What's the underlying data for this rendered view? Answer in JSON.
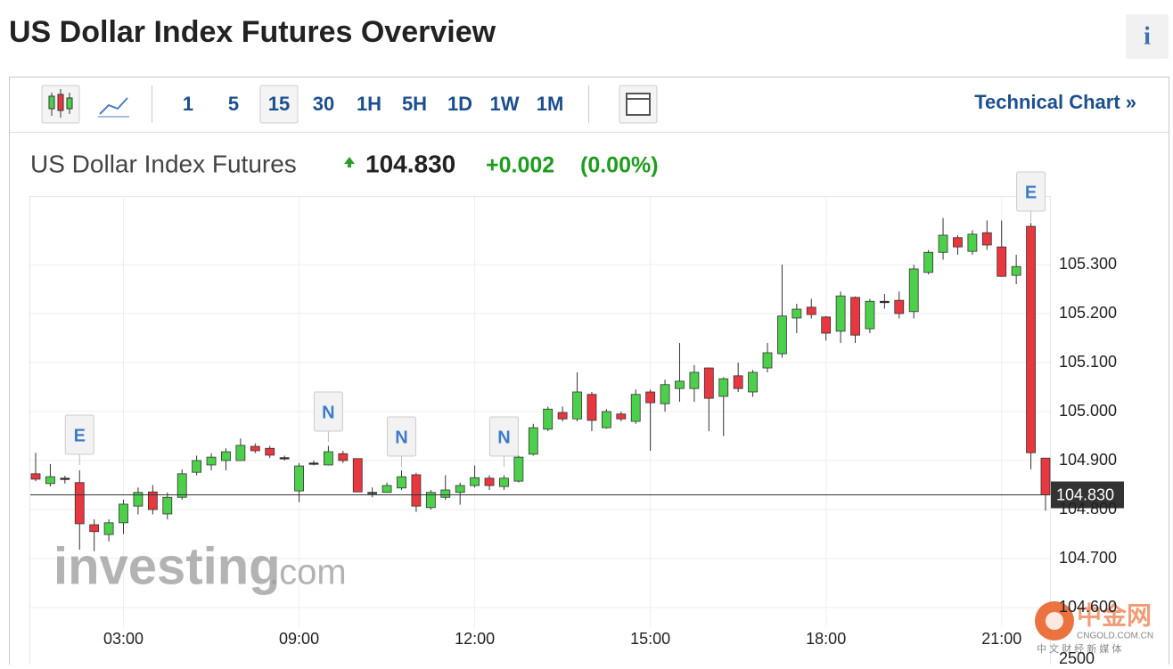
{
  "header": {
    "title": "US Dollar Index Futures Overview",
    "info": "i"
  },
  "toolbar": {
    "intervals": [
      "1",
      "5",
      "15",
      "30",
      "1H",
      "5H",
      "1D",
      "1W",
      "1M"
    ],
    "selected": "15",
    "link": "Technical Chart »"
  },
  "quote": {
    "name": "US Dollar Index Futures",
    "price": "104.830",
    "change": "+0.002",
    "change_pct": "(0.00%)"
  },
  "chart_data": {
    "type": "candlestick",
    "open": [
      104.873,
      104.853,
      104.862,
      104.855,
      104.769,
      104.749,
      104.773,
      104.807,
      104.836,
      104.791,
      104.825,
      104.876,
      104.891,
      104.9,
      104.9,
      104.929,
      104.925,
      104.905,
      104.838,
      104.893,
      104.891,
      104.914,
      104.904,
      104.833,
      104.835,
      104.844,
      104.871,
      104.804,
      104.825,
      104.835,
      104.849,
      104.864,
      104.847,
      104.858,
      104.913,
      104.964,
      104.998,
      104.985,
      105.035,
      104.967,
      104.995,
      104.98,
      105.04,
      105.016,
      105.047,
      105.047,
      105.089,
      105.031,
      105.073,
      105.04,
      105.089,
      105.118,
      105.191,
      105.213,
      105.193,
      105.164,
      105.233,
      105.169,
      105.224,
      105.227,
      105.204,
      105.284,
      105.325,
      105.355,
      105.327,
      105.365,
      105.336,
      105.278,
      105.378,
      104.905
    ],
    "high": [
      104.916,
      104.893,
      104.869,
      104.88,
      104.78,
      104.78,
      104.82,
      104.845,
      104.85,
      104.835,
      104.882,
      104.91,
      104.915,
      104.925,
      104.945,
      104.935,
      104.93,
      104.91,
      104.895,
      104.9,
      104.93,
      104.92,
      104.904,
      104.845,
      104.855,
      104.88,
      104.875,
      104.84,
      104.87,
      104.855,
      104.89,
      104.87,
      104.87,
      104.91,
      104.975,
      105.01,
      105.01,
      105.08,
      105.04,
      105.005,
      105.0,
      105.045,
      105.045,
      105.065,
      105.14,
      105.095,
      105.09,
      105.07,
      105.1,
      105.085,
      105.14,
      105.3,
      105.22,
      105.23,
      105.195,
      105.245,
      105.235,
      105.23,
      105.24,
      105.245,
      105.3,
      105.33,
      105.395,
      105.36,
      105.37,
      105.39,
      105.39,
      105.32,
      105.385,
      104.905
    ],
    "low": [
      104.858,
      104.847,
      104.853,
      104.718,
      104.715,
      104.735,
      104.75,
      104.79,
      104.79,
      104.78,
      104.82,
      104.87,
      104.88,
      104.88,
      104.9,
      104.915,
      104.905,
      104.9,
      104.815,
      104.89,
      104.89,
      104.895,
      104.836,
      104.825,
      104.835,
      104.84,
      104.795,
      104.8,
      104.82,
      104.81,
      104.845,
      104.84,
      104.84,
      104.855,
      104.91,
      104.96,
      104.98,
      104.98,
      104.96,
      104.965,
      104.98,
      104.975,
      104.92,
      105.0,
      105.02,
      105.02,
      104.96,
      104.95,
      105.04,
      105.03,
      105.08,
      105.11,
      105.16,
      105.19,
      105.145,
      105.14,
      105.14,
      105.16,
      105.21,
      105.19,
      105.19,
      105.28,
      105.31,
      105.32,
      105.32,
      105.33,
      105.275,
      105.26,
      104.882,
      104.798
    ],
    "close": [
      104.862,
      104.867,
      104.864,
      104.771,
      104.755,
      104.773,
      104.811,
      104.835,
      104.8,
      104.825,
      104.873,
      104.9,
      104.907,
      104.918,
      104.931,
      104.92,
      104.911,
      104.906,
      104.889,
      104.895,
      104.918,
      104.9,
      104.836,
      104.835,
      104.849,
      104.867,
      104.807,
      104.835,
      104.84,
      104.849,
      104.865,
      104.849,
      104.864,
      104.907,
      104.967,
      105.005,
      104.985,
      105.04,
      104.982,
      105.0,
      104.985,
      105.035,
      105.018,
      105.055,
      105.062,
      105.08,
      105.027,
      105.067,
      105.047,
      105.08,
      105.12,
      105.195,
      105.209,
      105.198,
      105.16,
      105.236,
      105.156,
      105.225,
      105.225,
      105.2,
      105.291,
      105.325,
      105.36,
      105.336,
      105.362,
      105.34,
      105.276,
      105.296,
      104.916,
      104.83
    ],
    "up_color": "#4cd04c",
    "down_color": "#e8373f",
    "ylim": [
      104.56,
      105.44
    ],
    "yticks": [
      {
        "value": 104.6,
        "label": "104.600"
      },
      {
        "value": 104.7,
        "label": "104.700"
      },
      {
        "value": 104.8,
        "label": "104.800"
      },
      {
        "value": 104.9,
        "label": "104.900"
      },
      {
        "value": 105.0,
        "label": "105.000"
      },
      {
        "value": 105.1,
        "label": "105.100"
      },
      {
        "value": 105.2,
        "label": "105.200"
      },
      {
        "value": 105.3,
        "label": "105.300"
      }
    ],
    "xticks": [
      {
        "value": 6,
        "label": "03:00"
      },
      {
        "value": 18,
        "label": "09:00"
      },
      {
        "value": 30,
        "label": "12:00"
      },
      {
        "value": 42,
        "label": "15:00"
      },
      {
        "value": 54,
        "label": "18:00"
      },
      {
        "value": 66,
        "label": "21:00"
      }
    ],
    "events": [
      {
        "label": "E",
        "x": 3
      },
      {
        "label": "N",
        "x": 20
      },
      {
        "label": "N",
        "x": 25
      },
      {
        "label": "N",
        "x": 32
      },
      {
        "label": "E",
        "x": 68
      }
    ],
    "last_price": {
      "value": 104.83,
      "label": "104.830"
    },
    "grid": true
  },
  "watermarks": {
    "brand": "investing",
    "brand_suffix": ".com",
    "logo": "中金网",
    "logo_sub": "CNGOLD.COM.CN",
    "logo_sub2": "中 文 财 经 新 媒 体",
    "axis_fragment": "2500"
  }
}
